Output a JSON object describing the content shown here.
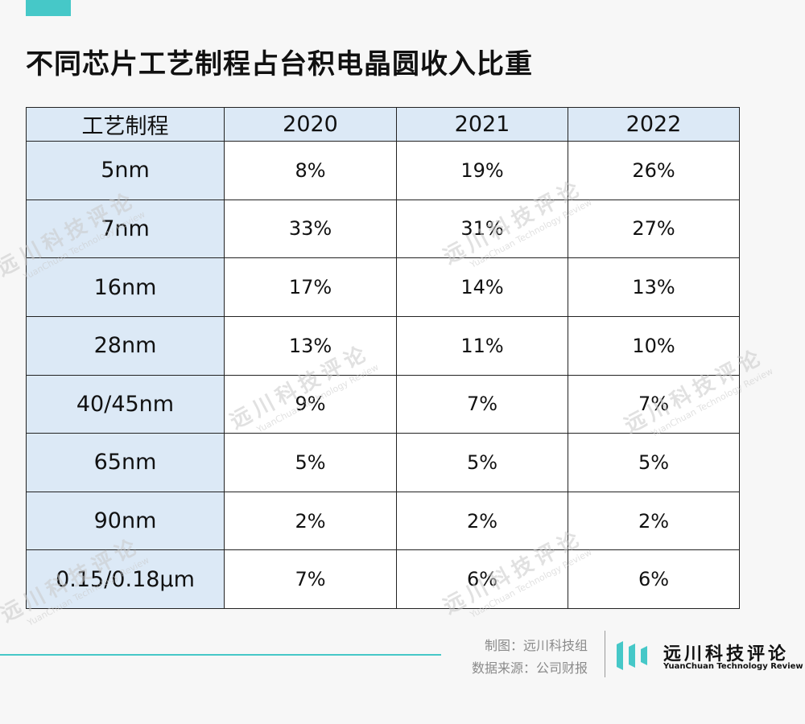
{
  "title": "不同芯片工艺制程占台积电晶圆收入比重",
  "colors": {
    "accent": "#46c8c8",
    "header_fill": "#dce9f6",
    "row_head_fill": "#dce9f6",
    "border": "#222222",
    "background": "#f7f7f7"
  },
  "chart_data": {
    "type": "table",
    "columns": [
      "工艺制程",
      "2020",
      "2021",
      "2022"
    ],
    "rows": [
      {
        "label": "5nm",
        "values": [
          "8%",
          "19%",
          "26%"
        ]
      },
      {
        "label": "7nm",
        "values": [
          "33%",
          "31%",
          "27%"
        ]
      },
      {
        "label": "16nm",
        "values": [
          "17%",
          "14%",
          "13%"
        ]
      },
      {
        "label": "28nm",
        "values": [
          "13%",
          "11%",
          "10%"
        ]
      },
      {
        "label": "40/45nm",
        "values": [
          "9%",
          "7%",
          "7%"
        ]
      },
      {
        "label": "65nm",
        "values": [
          "5%",
          "5%",
          "5%"
        ]
      },
      {
        "label": "90nm",
        "values": [
          "2%",
          "2%",
          "2%"
        ]
      },
      {
        "label": "0.15/0.18μm",
        "values": [
          "7%",
          "6%",
          "6%"
        ]
      }
    ]
  },
  "watermark": {
    "cn": "远川科技评论",
    "en": "YuanChuan Technology Review"
  },
  "footer": {
    "chart_by": "制图：远川科技组",
    "source": "数据来源：公司财报",
    "brand_name": "远川科技评论",
    "brand_en": "YuanChuan Technology Review"
  }
}
